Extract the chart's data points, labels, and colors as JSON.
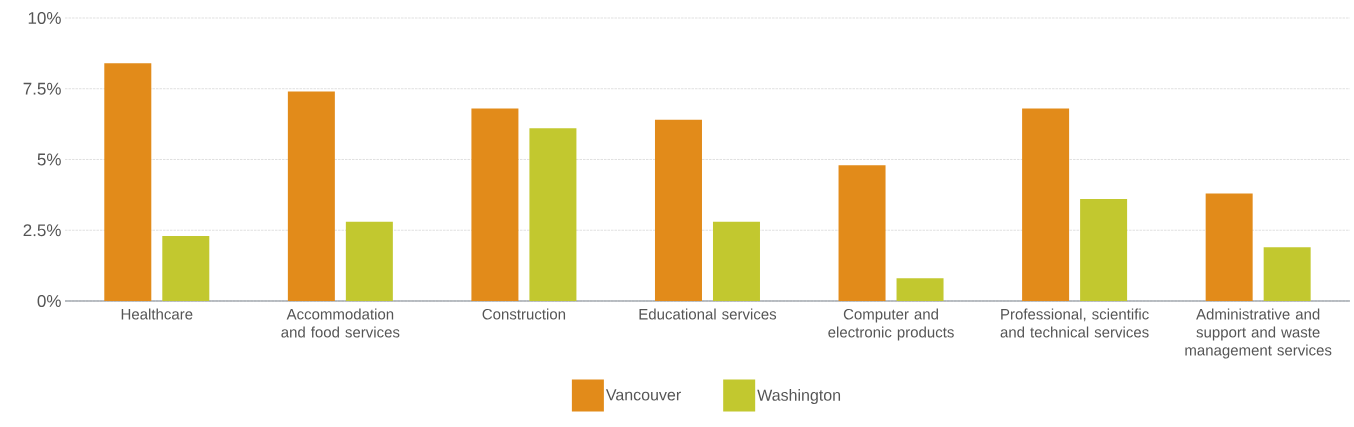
{
  "chart_data": {
    "type": "bar",
    "categories": [
      "Healthcare",
      "Accommodation and food services",
      "Construction",
      "Educational services",
      "Computer and electronic products",
      "Professional, scientific and technical services",
      "Administrative and support and waste management services"
    ],
    "series": [
      {
        "name": "Vancouver",
        "color": "#e28b1a",
        "values": [
          8.4,
          7.4,
          6.8,
          6.4,
          4.8,
          6.8,
          3.8
        ]
      },
      {
        "name": "Washington",
        "color": "#c2c82f",
        "values": [
          2.3,
          2.8,
          6.1,
          2.8,
          0.8,
          3.6,
          1.9
        ]
      }
    ],
    "ylim": [
      0,
      10
    ],
    "yticks": [
      {
        "value": 0,
        "label": "0%"
      },
      {
        "value": 2.5,
        "label": "2.5%"
      },
      {
        "value": 5,
        "label": "5%"
      },
      {
        "value": 7.5,
        "label": "7.5%"
      },
      {
        "value": 10,
        "label": "10%"
      }
    ],
    "grid": "y",
    "legend": "bottom"
  }
}
